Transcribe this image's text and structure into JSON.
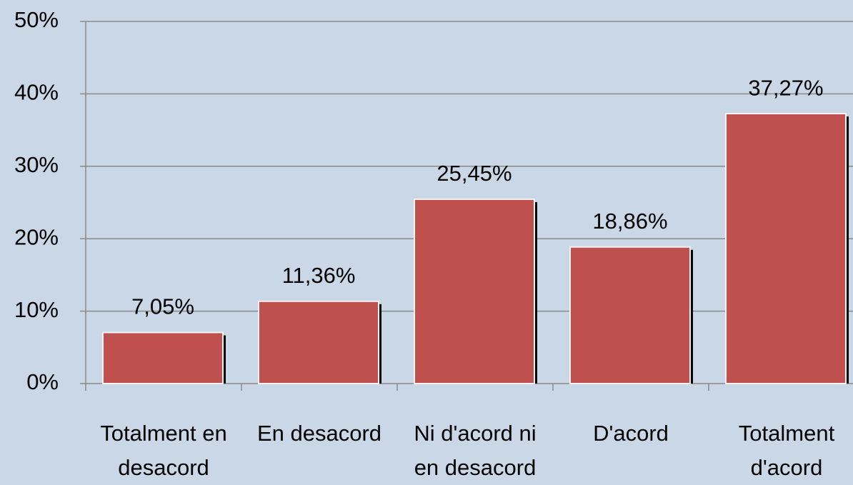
{
  "chart_data": {
    "type": "bar",
    "categories": [
      "Totalment en desacord",
      "En desacord",
      "Ni d'acord ni en desacord",
      "D'acord",
      "Totalment d'acord"
    ],
    "values": [
      7.05,
      11.36,
      25.45,
      18.86,
      37.27
    ],
    "value_labels": [
      "7,05%",
      "11,36%",
      "25,45%",
      "18,86%",
      "37,27%"
    ],
    "color": "#c0504d",
    "ylim": [
      0,
      50
    ],
    "yticks": [
      {
        "value": 0,
        "label": "0%"
      },
      {
        "value": 10,
        "label": "10%"
      },
      {
        "value": 20,
        "label": "20%"
      },
      {
        "value": 30,
        "label": "30%"
      },
      {
        "value": 40,
        "label": "40%"
      },
      {
        "value": 50,
        "label": "50%"
      }
    ],
    "grid": true
  }
}
